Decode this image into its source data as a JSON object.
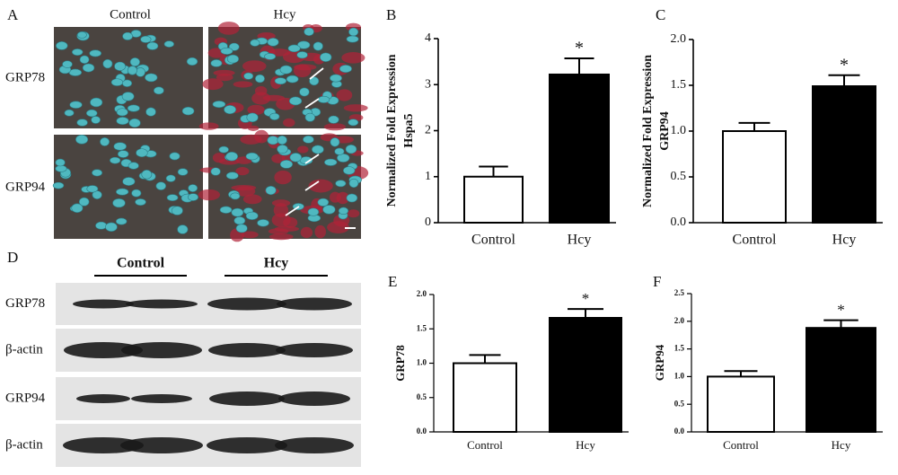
{
  "panel_labels": [
    "A",
    "B",
    "C",
    "D",
    "E",
    "F"
  ],
  "micrographs": {
    "columns": [
      "Control",
      "Hcy"
    ],
    "rows": [
      "GRP78",
      "GRP94"
    ]
  },
  "blot": {
    "groups": [
      "Control",
      "Hcy"
    ],
    "rows": [
      "GRP78",
      "β-actin",
      "GRP94",
      "β-actin"
    ]
  },
  "chart_data": [
    {
      "type": "bar",
      "ylabel": [
        "Normalized Fold Expression",
        "Hspa5"
      ],
      "categories": [
        "Control",
        "Hcy"
      ],
      "values": [
        1.0,
        3.22
      ],
      "errors": [
        0.22,
        0.35
      ],
      "colors": [
        "#ffffff",
        "#000000"
      ],
      "annotation": "*",
      "ylim": [
        0,
        4
      ],
      "yticks": [
        0,
        1,
        2,
        3,
        4
      ]
    },
    {
      "type": "bar",
      "ylabel": [
        "Normalized Fold Expression",
        "GRP94"
      ],
      "categories": [
        "Control",
        "Hcy"
      ],
      "values": [
        1.0,
        1.49
      ],
      "errors": [
        0.09,
        0.12
      ],
      "colors": [
        "#ffffff",
        "#000000"
      ],
      "annotation": "*",
      "ylim": [
        0,
        2
      ],
      "yticks": [
        {
          "value": 0,
          "label": "0.0"
        },
        0.5,
        {
          "value": 1,
          "label": "1.0"
        },
        1.5,
        {
          "value": 2,
          "label": "2.0"
        }
      ]
    },
    {
      "type": "bar",
      "ylabel": [
        "GRP78"
      ],
      "categories": [
        "Control",
        "Hcy"
      ],
      "values": [
        1.0,
        1.66
      ],
      "errors": [
        0.12,
        0.13
      ],
      "colors": [
        "#ffffff",
        "#000000"
      ],
      "annotation": "*",
      "ylim": [
        0,
        2
      ],
      "yticks": [
        {
          "value": 0,
          "label": "0.0"
        },
        0.5,
        {
          "value": 1,
          "label": "1.0"
        },
        1.5,
        {
          "value": 2,
          "label": "2.0"
        }
      ]
    },
    {
      "type": "bar",
      "ylabel": [
        "GRP94"
      ],
      "categories": [
        "Control",
        "Hcy"
      ],
      "values": [
        1.0,
        1.88
      ],
      "errors": [
        0.1,
        0.14
      ],
      "colors": [
        "#ffffff",
        "#000000"
      ],
      "annotation": "*",
      "ylim": [
        0,
        2.5
      ],
      "yticks": [
        {
          "value": 0,
          "label": "0.0"
        },
        0.5,
        {
          "value": 1,
          "label": "1.0"
        },
        1.5,
        {
          "value": 2,
          "label": "2.0"
        },
        2.5
      ]
    }
  ]
}
